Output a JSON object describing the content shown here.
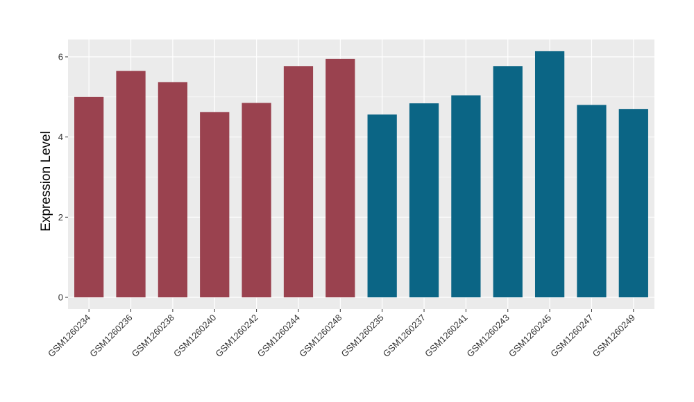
{
  "chart_data": {
    "type": "bar",
    "title": "",
    "xlabel": "",
    "ylabel": "Expression Level",
    "ylim": [
      0,
      6.4
    ],
    "yticks": [
      0,
      2,
      4,
      6
    ],
    "grid": true,
    "legend": "none",
    "colors": {
      "group_a": "#9A424F",
      "group_b": "#0B6585",
      "panel_bg": "#EBEBEB",
      "grid": "#FFFFFF"
    },
    "categories": [
      "GSM1260234",
      "GSM1260236",
      "GSM1260238",
      "GSM1260240",
      "GSM1260242",
      "GSM1260244",
      "GSM1260248",
      "GSM1260235",
      "GSM1260237",
      "GSM1260241",
      "GSM1260243",
      "GSM1260245",
      "GSM1260247",
      "GSM1260249"
    ],
    "values": [
      5.0,
      5.65,
      5.37,
      4.62,
      4.85,
      5.77,
      5.95,
      4.56,
      4.84,
      5.04,
      5.77,
      6.14,
      4.8,
      4.7
    ],
    "groups": [
      "a",
      "a",
      "a",
      "a",
      "a",
      "a",
      "a",
      "b",
      "b",
      "b",
      "b",
      "b",
      "b",
      "b"
    ]
  }
}
